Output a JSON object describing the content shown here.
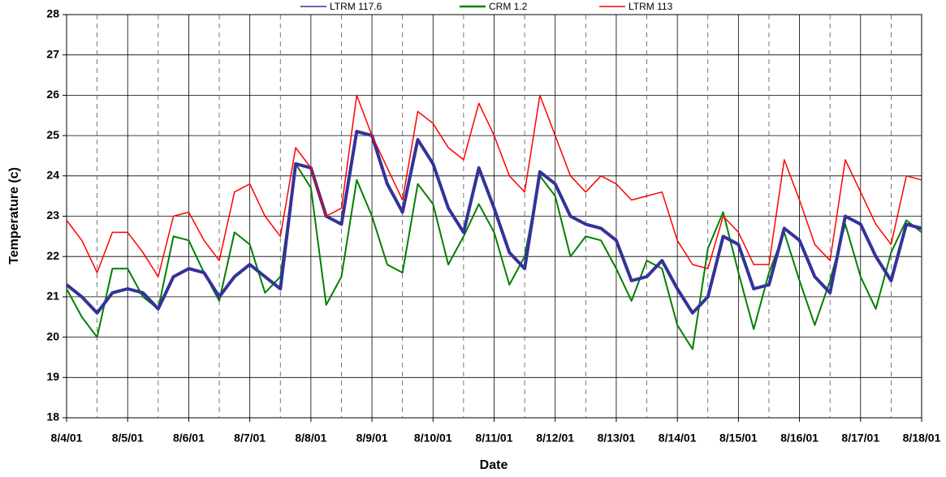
{
  "chart_data": {
    "type": "line",
    "xlabel": "Date",
    "ylabel": "Temperature (c)",
    "x": [
      0,
      0.25,
      0.5,
      0.75,
      1,
      1.25,
      1.5,
      1.75,
      2,
      2.25,
      2.5,
      2.75,
      3,
      3.25,
      3.5,
      3.75,
      4,
      4.25,
      4.5,
      4.75,
      5,
      5.25,
      5.5,
      5.75,
      6,
      6.25,
      6.5,
      6.75,
      7,
      7.25,
      7.5,
      7.75,
      8,
      8.25,
      8.5,
      8.75,
      9,
      9.25,
      9.5,
      9.75,
      10,
      10.25,
      10.5,
      10.75,
      11,
      11.25,
      11.5,
      11.75,
      12,
      12.25,
      12.5,
      12.75,
      13,
      13.25,
      13.5,
      13.75,
      14
    ],
    "series": [
      {
        "name": "LTRM 117.6",
        "color": "#333399",
        "values": [
          21.3,
          21.0,
          20.6,
          21.1,
          21.2,
          21.1,
          20.7,
          21.5,
          21.7,
          21.6,
          21.0,
          21.5,
          21.8,
          21.5,
          21.2,
          24.3,
          24.2,
          23.0,
          22.8,
          25.1,
          25.0,
          23.8,
          23.1,
          24.9,
          24.3,
          23.2,
          22.6,
          24.2,
          23.2,
          22.1,
          21.7,
          24.1,
          23.8,
          23.0,
          22.8,
          22.7,
          22.4,
          21.4,
          21.5,
          21.9,
          21.2,
          20.6,
          21.0,
          22.5,
          22.3,
          21.2,
          21.3,
          22.7,
          22.4,
          21.5,
          21.1,
          23.0,
          22.8,
          22.0,
          21.4,
          22.8,
          22.7
        ]
      },
      {
        "name": "CRM 1.2",
        "color": "#008000",
        "values": [
          21.2,
          20.5,
          20.0,
          21.7,
          21.7,
          21.0,
          20.7,
          22.5,
          22.4,
          21.6,
          20.9,
          22.6,
          22.3,
          21.1,
          21.5,
          24.3,
          23.7,
          20.8,
          21.5,
          23.9,
          23.0,
          21.8,
          21.6,
          23.8,
          23.3,
          21.8,
          22.5,
          23.3,
          22.6,
          21.3,
          22.0,
          24.0,
          23.5,
          22.0,
          22.5,
          22.4,
          21.7,
          20.9,
          21.9,
          21.7,
          20.3,
          19.7,
          22.2,
          23.1,
          21.6,
          20.2,
          21.6,
          22.6,
          21.4,
          20.3,
          21.4,
          22.8,
          21.5,
          20.7,
          22.1,
          22.9,
          22.6
        ]
      },
      {
        "name": "LTRM 113",
        "color": "#ff0000",
        "values": [
          22.9,
          22.4,
          21.6,
          22.6,
          22.6,
          22.1,
          21.5,
          23.0,
          23.1,
          22.4,
          21.9,
          23.6,
          23.8,
          23.0,
          22.5,
          24.7,
          24.2,
          23.0,
          23.2,
          26.0,
          25.0,
          24.2,
          23.4,
          25.6,
          25.3,
          24.7,
          24.4,
          25.8,
          25.0,
          24.0,
          23.6,
          26.0,
          25.0,
          24.0,
          23.6,
          24.0,
          23.8,
          23.4,
          23.5,
          23.6,
          22.4,
          21.8,
          21.7,
          23.0,
          22.6,
          21.8,
          21.8,
          24.4,
          23.4,
          22.3,
          21.9,
          24.4,
          23.6,
          22.8,
          22.3,
          24.0,
          23.9
        ]
      }
    ],
    "xlim": [
      0,
      14
    ],
    "xticks": [
      {
        "value": 0,
        "label": "8/4/01"
      },
      {
        "value": 1,
        "label": "8/5/01"
      },
      {
        "value": 2,
        "label": "8/6/01"
      },
      {
        "value": 3,
        "label": "8/7/01"
      },
      {
        "value": 4,
        "label": "8/8/01"
      },
      {
        "value": 5,
        "label": "8/9/01"
      },
      {
        "value": 6,
        "label": "8/10/01"
      },
      {
        "value": 7,
        "label": "8/11/01"
      },
      {
        "value": 8,
        "label": "8/12/01"
      },
      {
        "value": 9,
        "label": "8/13/01"
      },
      {
        "value": 10,
        "label": "8/14/01"
      },
      {
        "value": 11,
        "label": "8/15/01"
      },
      {
        "value": 12,
        "label": "8/16/01"
      },
      {
        "value": 13,
        "label": "8/17/01"
      },
      {
        "value": 14,
        "label": "8/18/01"
      }
    ],
    "ylim": [
      18,
      28
    ],
    "yticks": [
      18,
      19,
      20,
      21,
      22,
      23,
      24,
      25,
      26,
      27,
      28
    ],
    "grid": true,
    "legend": "top"
  }
}
